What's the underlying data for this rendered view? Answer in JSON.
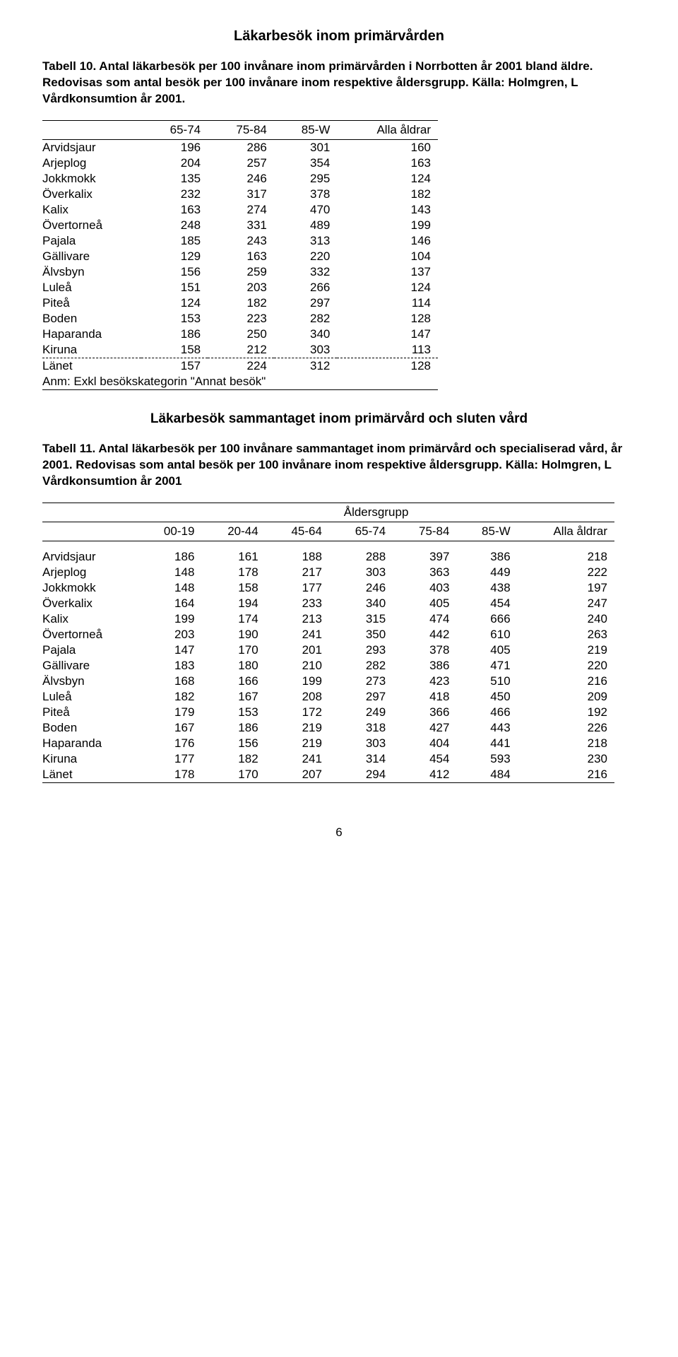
{
  "title1": "Läkarbesök inom primärvården",
  "caption1": "Tabell 10. Antal läkarbesök per 100 invånare inom primärvården i Norrbotten år 2001 bland äldre. Redovisas som antal besök per 100 invånare inom respektive åldersgrupp. Källa: Holmgren, L Vårdkonsumtion år 2001.",
  "table1": {
    "columns": [
      "",
      "65-74",
      "75-84",
      "85-W",
      "Alla åldrar"
    ],
    "rows": [
      [
        "Arvidsjaur",
        196,
        286,
        301,
        160
      ],
      [
        "Arjeplog",
        204,
        257,
        354,
        163
      ],
      [
        "Jokkmokk",
        135,
        246,
        295,
        124
      ],
      [
        "Överkalix",
        232,
        317,
        378,
        182
      ],
      [
        "Kalix",
        163,
        274,
        470,
        143
      ],
      [
        "Övertorneå",
        248,
        331,
        489,
        199
      ],
      [
        "Pajala",
        185,
        243,
        313,
        146
      ],
      [
        "Gällivare",
        129,
        163,
        220,
        104
      ],
      [
        "Älvsbyn",
        156,
        259,
        332,
        137
      ],
      [
        "Luleå",
        151,
        203,
        266,
        124
      ],
      [
        "Piteå",
        124,
        182,
        297,
        114
      ],
      [
        "Boden",
        153,
        223,
        282,
        128
      ],
      [
        "Haparanda",
        186,
        250,
        340,
        147
      ],
      [
        "Kiruna",
        158,
        212,
        303,
        113
      ]
    ],
    "summary": [
      "Länet",
      157,
      224,
      312,
      128
    ],
    "footnote": "Anm: Exkl besökskategorin \"Annat besök\""
  },
  "title2": "Läkarbesök sammantaget inom primärvård och sluten vård",
  "caption2": "Tabell 11. Antal läkarbesök per 100 invånare sammantaget inom primärvård och specialiserad vård, år 2001. Redovisas som antal besök per 100 invånare inom respektive åldersgrupp. Källa: Holmgren, L Vårdkonsumtion år 2001",
  "table2": {
    "group_header": "Åldersgrupp",
    "columns": [
      "",
      "00-19",
      "20-44",
      "45-64",
      "65-74",
      "75-84",
      "85-W",
      "Alla åldrar"
    ],
    "rows": [
      [
        "Arvidsjaur",
        186,
        161,
        188,
        288,
        397,
        386,
        218
      ],
      [
        "Arjeplog",
        148,
        178,
        217,
        303,
        363,
        449,
        222
      ],
      [
        "Jokkmokk",
        148,
        158,
        177,
        246,
        403,
        438,
        197
      ],
      [
        "Överkalix",
        164,
        194,
        233,
        340,
        405,
        454,
        247
      ],
      [
        "Kalix",
        199,
        174,
        213,
        315,
        474,
        666,
        240
      ],
      [
        "Övertorneå",
        203,
        190,
        241,
        350,
        442,
        610,
        263
      ],
      [
        "Pajala",
        147,
        170,
        201,
        293,
        378,
        405,
        219
      ],
      [
        "Gällivare",
        183,
        180,
        210,
        282,
        386,
        471,
        220
      ],
      [
        "Älvsbyn",
        168,
        166,
        199,
        273,
        423,
        510,
        216
      ],
      [
        "Luleå",
        182,
        167,
        208,
        297,
        418,
        450,
        209
      ],
      [
        "Piteå",
        179,
        153,
        172,
        249,
        366,
        466,
        192
      ],
      [
        "Boden",
        167,
        186,
        219,
        318,
        427,
        443,
        226
      ],
      [
        "Haparanda",
        176,
        156,
        219,
        303,
        404,
        441,
        218
      ],
      [
        "Kiruna",
        177,
        182,
        241,
        314,
        454,
        593,
        230
      ],
      [
        "Länet",
        178,
        170,
        207,
        294,
        412,
        484,
        216
      ]
    ]
  },
  "page_number": "6"
}
